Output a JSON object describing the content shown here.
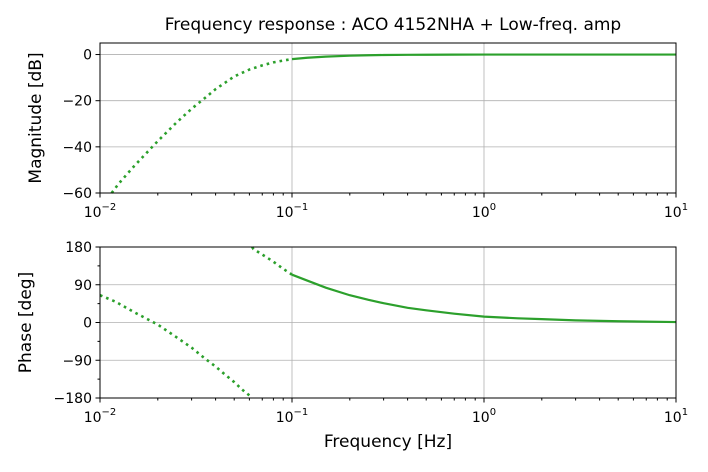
{
  "chart_data": [
    {
      "type": "line",
      "title": "Frequency response : ACO 4152NHA + Low-freq. amp",
      "xlabel": "",
      "ylabel": "Magnitude [dB]",
      "xscale": "log",
      "xlim": [
        0.01,
        10
      ],
      "ylim": [
        -60,
        5
      ],
      "grid": true,
      "x_ticks": [
        {
          "value": 0.01,
          "base": "10",
          "exp": "−2"
        },
        {
          "value": 0.1,
          "base": "10",
          "exp": "−1"
        },
        {
          "value": 1,
          "base": "10",
          "exp": "0"
        },
        {
          "value": 10,
          "base": "10",
          "exp": "1"
        }
      ],
      "y_ticks": [
        {
          "value": 0,
          "label": "0"
        },
        {
          "value": -20,
          "label": "−20"
        },
        {
          "value": -40,
          "label": "−40"
        },
        {
          "value": -60,
          "label": "−60"
        }
      ],
      "color": "#2ca02c",
      "series": [
        {
          "style": "dotted",
          "x": [
            0.0115,
            0.0125,
            0.015,
            0.018,
            0.02,
            0.025,
            0.03,
            0.035,
            0.04,
            0.05,
            0.06,
            0.07,
            0.08,
            0.09,
            0.1
          ],
          "y": [
            -60,
            -56,
            -48.5,
            -41.5,
            -37.5,
            -29.5,
            -23.5,
            -19,
            -15,
            -9.5,
            -6.5,
            -4.7,
            -3.4,
            -2.6,
            -2.0
          ]
        },
        {
          "style": "solid",
          "x": [
            0.1,
            0.12,
            0.15,
            0.2,
            0.25,
            0.3,
            0.4,
            0.5,
            0.7,
            1,
            2,
            5,
            10
          ],
          "y": [
            -2.0,
            -1.4,
            -0.9,
            -0.5,
            -0.3,
            -0.2,
            -0.12,
            -0.08,
            -0.04,
            -0.02,
            -0.01,
            0,
            0
          ]
        }
      ]
    },
    {
      "type": "line",
      "xlabel": "Frequency [Hz]",
      "ylabel": "Phase [deg]",
      "xscale": "log",
      "xlim": [
        0.01,
        10
      ],
      "ylim": [
        -180,
        180
      ],
      "grid": true,
      "x_ticks": [
        {
          "value": 0.01,
          "base": "10",
          "exp": "−2"
        },
        {
          "value": 0.1,
          "base": "10",
          "exp": "−1"
        },
        {
          "value": 1,
          "base": "10",
          "exp": "0"
        },
        {
          "value": 10,
          "base": "10",
          "exp": "1"
        }
      ],
      "y_ticks": [
        {
          "value": 180,
          "label": "180"
        },
        {
          "value": 90,
          "label": "90"
        },
        {
          "value": 0,
          "label": "0"
        },
        {
          "value": -90,
          "label": "−90"
        },
        {
          "value": -180,
          "label": "−180"
        }
      ],
      "color": "#2ca02c",
      "series": [
        {
          "style": "dotted",
          "x": [
            0.01,
            0.012,
            0.015,
            0.02,
            0.025,
            0.03,
            0.035,
            0.04,
            0.045,
            0.05,
            0.055,
            0.06,
            0.062
          ],
          "y": [
            65,
            50,
            25,
            -5,
            -35,
            -60,
            -85,
            -105,
            -125,
            -142,
            -160,
            -174,
            -180
          ]
        },
        {
          "style": "dotted",
          "x": [
            0.062,
            0.063,
            0.07,
            0.08,
            0.09,
            0.1
          ],
          "y": [
            180,
            175,
            162,
            145,
            128,
            114
          ]
        },
        {
          "style": "solid",
          "x": [
            0.1,
            0.12,
            0.15,
            0.2,
            0.25,
            0.3,
            0.4,
            0.5,
            0.7,
            1,
            1.5,
            2,
            3,
            5,
            10
          ],
          "y": [
            114,
            100,
            83,
            65,
            54,
            46,
            35,
            29,
            21,
            14,
            10,
            8,
            5,
            3,
            1
          ]
        }
      ]
    }
  ]
}
